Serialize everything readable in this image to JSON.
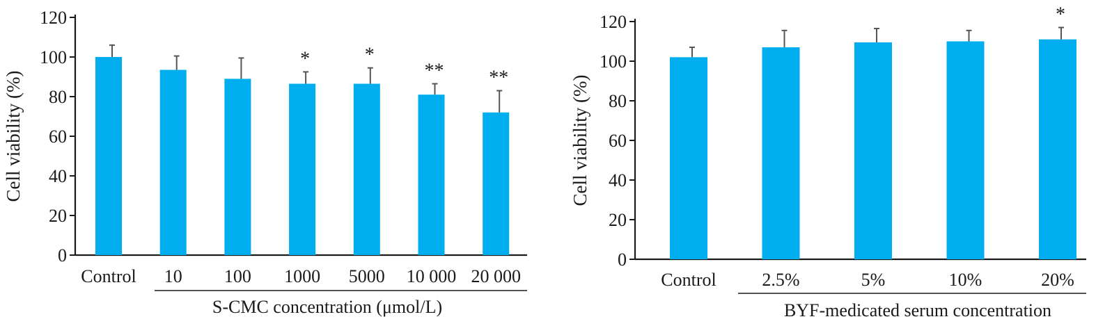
{
  "colors": {
    "bar": "#00ADEE",
    "axis": "#1a1a1a",
    "error": "#555555"
  },
  "chart_data": [
    {
      "type": "bar",
      "title": "",
      "ylabel": "Cell viability (%)",
      "xlabel": "S-CMC concentration (μmol/L)",
      "ylim": [
        0,
        120
      ],
      "yticks": [
        0,
        20,
        40,
        60,
        80,
        100,
        120
      ],
      "grid": false,
      "categories": [
        "Control",
        "10",
        "100",
        "1000",
        "5000",
        "10 000",
        "20 000"
      ],
      "values": [
        100,
        93.5,
        89,
        86.5,
        86.5,
        81,
        72
      ],
      "errors": [
        6,
        7,
        10.5,
        6,
        8,
        5.5,
        11
      ],
      "significance": [
        "",
        "",
        "",
        "*",
        "*",
        "**",
        "**"
      ]
    },
    {
      "type": "bar",
      "title": "",
      "ylabel": "Cell viability (%)",
      "xlabel": "BYF-medicated serum concentration",
      "ylim": [
        0,
        120
      ],
      "yticks": [
        0,
        20,
        40,
        60,
        80,
        100,
        120
      ],
      "grid": false,
      "categories": [
        "Control",
        "2.5%",
        "5%",
        "10%",
        "20%"
      ],
      "values": [
        102,
        107,
        109.5,
        110,
        111
      ],
      "errors": [
        5,
        8.5,
        7,
        5.5,
        6
      ],
      "significance": [
        "",
        "",
        "",
        "",
        "*"
      ]
    }
  ]
}
